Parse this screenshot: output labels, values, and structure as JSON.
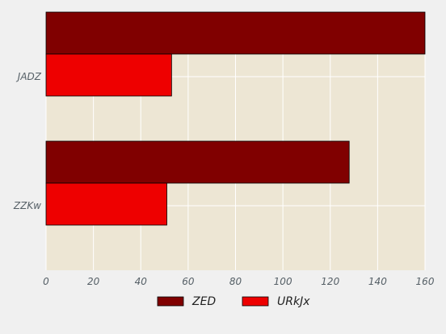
{
  "chart_data": {
    "type": "bar",
    "orientation": "horizontal",
    "categories": [
      "JADZ",
      "ZZKw"
    ],
    "series": [
      {
        "name": "ZED",
        "values": [
          160,
          128
        ],
        "color": "#800000"
      },
      {
        "name": "URkJx",
        "values": [
          53,
          51
        ],
        "color": "#ee0000"
      }
    ],
    "xlim": [
      0,
      160
    ],
    "xticks": [
      0,
      20,
      40,
      60,
      80,
      100,
      120,
      140,
      160
    ],
    "grid": true,
    "legend_position": "bottom",
    "plot_background": "#ede6d4",
    "title": "",
    "xlabel": "",
    "ylabel": ""
  }
}
